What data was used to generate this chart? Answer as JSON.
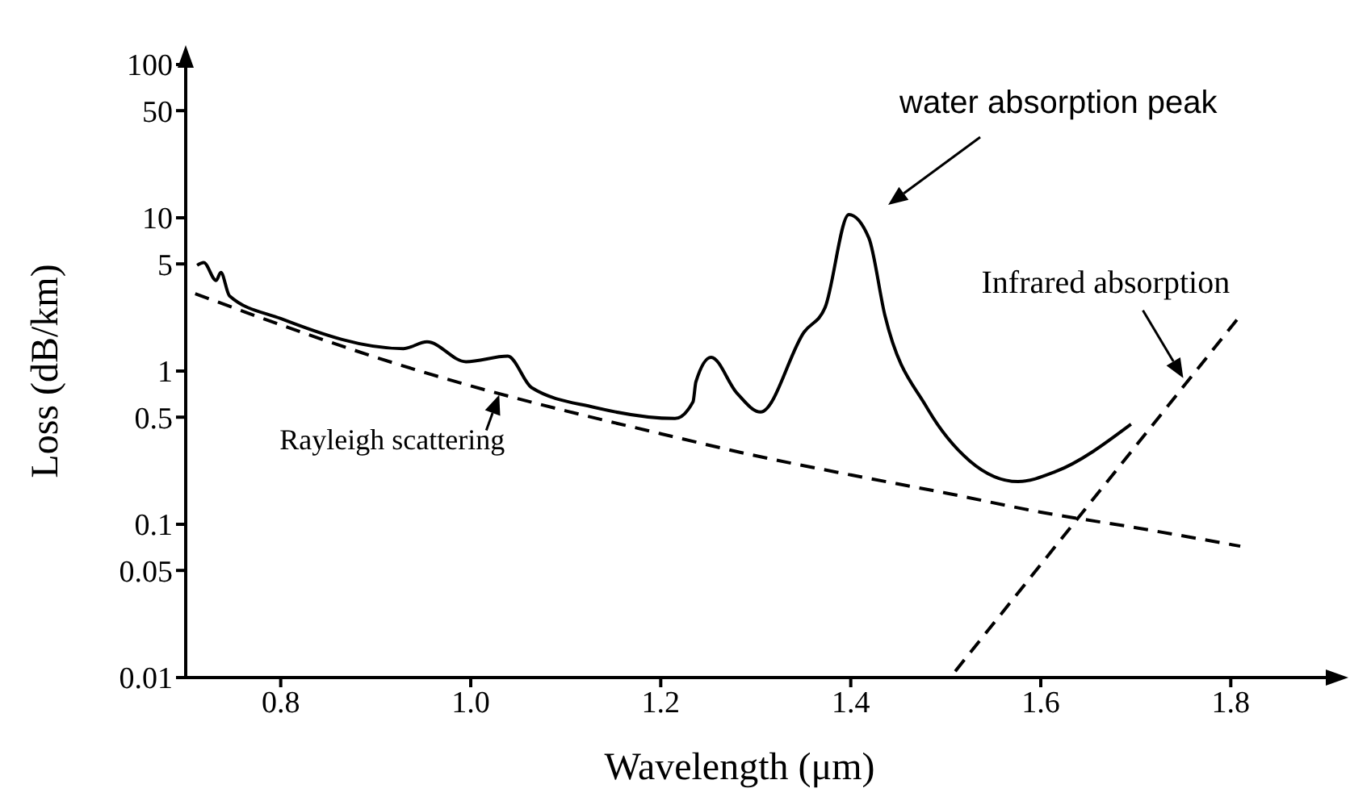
{
  "chart_data": {
    "type": "line",
    "xlabel": "Wavelength (μm)",
    "ylabel": "Loss (dB/km)",
    "log": "y",
    "xlim": [
      0.7,
      1.9
    ],
    "ylim": [
      0.01,
      100
    ],
    "xticks": [
      0.8,
      {
        "value": 1,
        "label": "1.0"
      },
      1.2,
      1.4,
      1.6,
      1.8
    ],
    "yticks": [
      0.01,
      0.05,
      0.1,
      0.5,
      1,
      5,
      10,
      50,
      100
    ],
    "marker": "none",
    "series": [
      {
        "color": "#000000",
        "line_style": "solid",
        "x": [
          0.712,
          0.719,
          0.732,
          0.737,
          0.746,
          0.8,
          0.929,
          0.954,
          0.995,
          1.039,
          1.064,
          1.13,
          1.215,
          1.234,
          1.237,
          1.253,
          1.28,
          1.305,
          1.351,
          1.373,
          1.398,
          1.419,
          1.436,
          1.48,
          1.525,
          1.576,
          1.615,
          1.695
        ],
        "values": [
          4.9,
          5.1,
          3.9,
          4.4,
          3.1,
          2.2,
          1.4,
          1.55,
          1.15,
          1.25,
          0.78,
          0.58,
          0.49,
          0.63,
          0.85,
          1.23,
          0.72,
          0.54,
          1.8,
          2.6,
          10.5,
          7.4,
          2.3,
          0.58,
          0.26,
          0.19,
          0.22,
          0.45
        ]
      },
      {
        "color": "#000000",
        "line_style": "dashed",
        "x": [
          0.71,
          0.8,
          0.9,
          1.0,
          1.1,
          1.2,
          1.3,
          1.4,
          1.5,
          1.6,
          1.7,
          1.81
        ],
        "values": [
          3.2,
          2,
          1.23,
          0.8,
          0.55,
          0.39,
          0.28,
          0.21,
          0.16,
          0.12,
          0.095,
          0.072
        ]
      },
      {
        "color": "#000000",
        "line_style": "dashed",
        "x": [
          1.51,
          1.81
        ],
        "values": [
          0.011,
          2.3
        ]
      }
    ],
    "annotations": [
      "water absorption peak",
      {
        "text": "Rayleigh scattering",
        "x": 1.03,
        "y": 0.7
      },
      {
        "text": "Infrared absorption",
        "x": 1.75,
        "y": 0.9
      }
    ]
  }
}
